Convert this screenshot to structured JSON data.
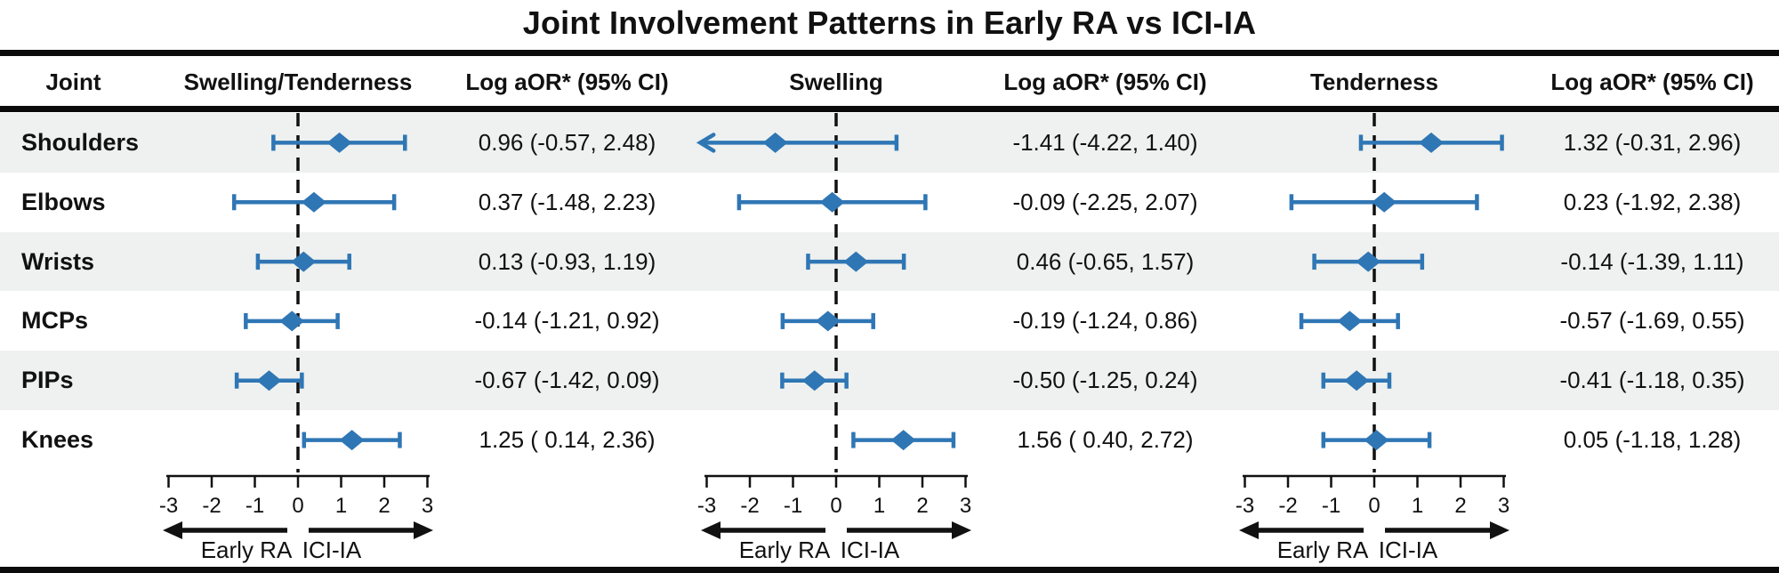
{
  "title": "Joint Involvement Patterns in Early RA vs ICI-IA",
  "colors": {
    "accent_blue": "#2f76b5",
    "row_shade": "#eef1ef",
    "line_black": "#111111"
  },
  "headers": [
    "Joint",
    "Swelling/Tenderness",
    "Log aOR* (95% CI)",
    "Swelling",
    "Log aOR* (95% CI)",
    "Tenderness",
    "Log aOR* (95% CI)"
  ],
  "chart_data": {
    "type": "scatter",
    "subtype": "forest-plot-with-error-bars",
    "title": "Joint Involvement Patterns in Early RA vs ICI-IA",
    "xlim": [
      -3,
      3
    ],
    "xticks": [
      -3,
      -2,
      -1,
      0,
      1,
      2,
      3
    ],
    "xtick_labels": [
      "-3",
      "-2",
      "-1",
      "0",
      "1",
      "2",
      "3"
    ],
    "zero_reference_line": true,
    "direction_left_label": "Early RA",
    "direction_right_label": "ICI-IA",
    "categories": [
      "Shoulders",
      "Elbows",
      "Wrists",
      "MCPs",
      "PIPs",
      "Knees"
    ],
    "series": [
      {
        "name": "Swelling/Tenderness",
        "points": [
          {
            "est": 0.96,
            "lo": -0.57,
            "hi": 2.48,
            "label": "0.96 (-0.57, 2.48)"
          },
          {
            "est": 0.37,
            "lo": -1.48,
            "hi": 2.23,
            "label": "0.37 (-1.48, 2.23)"
          },
          {
            "est": 0.13,
            "lo": -0.93,
            "hi": 1.19,
            "label": "0.13 (-0.93, 1.19)"
          },
          {
            "est": -0.14,
            "lo": -1.21,
            "hi": 0.92,
            "label": "-0.14 (-1.21, 0.92)"
          },
          {
            "est": -0.67,
            "lo": -1.42,
            "hi": 0.09,
            "label": "-0.67 (-1.42, 0.09)"
          },
          {
            "est": 1.25,
            "lo": 0.14,
            "hi": 2.36,
            "label": "1.25 ( 0.14, 2.36)"
          }
        ]
      },
      {
        "name": "Swelling",
        "points": [
          {
            "est": -1.41,
            "lo": -4.22,
            "hi": 1.4,
            "label": "-1.41 (-4.22, 1.40)"
          },
          {
            "est": -0.09,
            "lo": -2.25,
            "hi": 2.07,
            "label": "-0.09 (-2.25, 2.07)"
          },
          {
            "est": 0.46,
            "lo": -0.65,
            "hi": 1.57,
            "label": "0.46 (-0.65, 1.57)"
          },
          {
            "est": -0.19,
            "lo": -1.24,
            "hi": 0.86,
            "label": "-0.19 (-1.24, 0.86)"
          },
          {
            "est": -0.5,
            "lo": -1.25,
            "hi": 0.24,
            "label": "-0.50 (-1.25, 0.24)"
          },
          {
            "est": 1.56,
            "lo": 0.4,
            "hi": 2.72,
            "label": "1.56 ( 0.40, 2.72)"
          }
        ]
      },
      {
        "name": "Tenderness",
        "points": [
          {
            "est": 1.32,
            "lo": -0.31,
            "hi": 2.96,
            "label": "1.32 (-0.31, 2.96)"
          },
          {
            "est": 0.23,
            "lo": -1.92,
            "hi": 2.38,
            "label": "0.23 (-1.92, 2.38)"
          },
          {
            "est": -0.14,
            "lo": -1.39,
            "hi": 1.11,
            "label": "-0.14 (-1.39, 1.11)"
          },
          {
            "est": -0.57,
            "lo": -1.69,
            "hi": 0.55,
            "label": "-0.57 (-1.69, 0.55)"
          },
          {
            "est": -0.41,
            "lo": -1.18,
            "hi": 0.35,
            "label": "-0.41 (-1.18, 0.35)"
          },
          {
            "est": 0.05,
            "lo": -1.18,
            "hi": 1.28,
            "label": "0.05 (-1.18, 1.28)"
          }
        ]
      }
    ]
  }
}
